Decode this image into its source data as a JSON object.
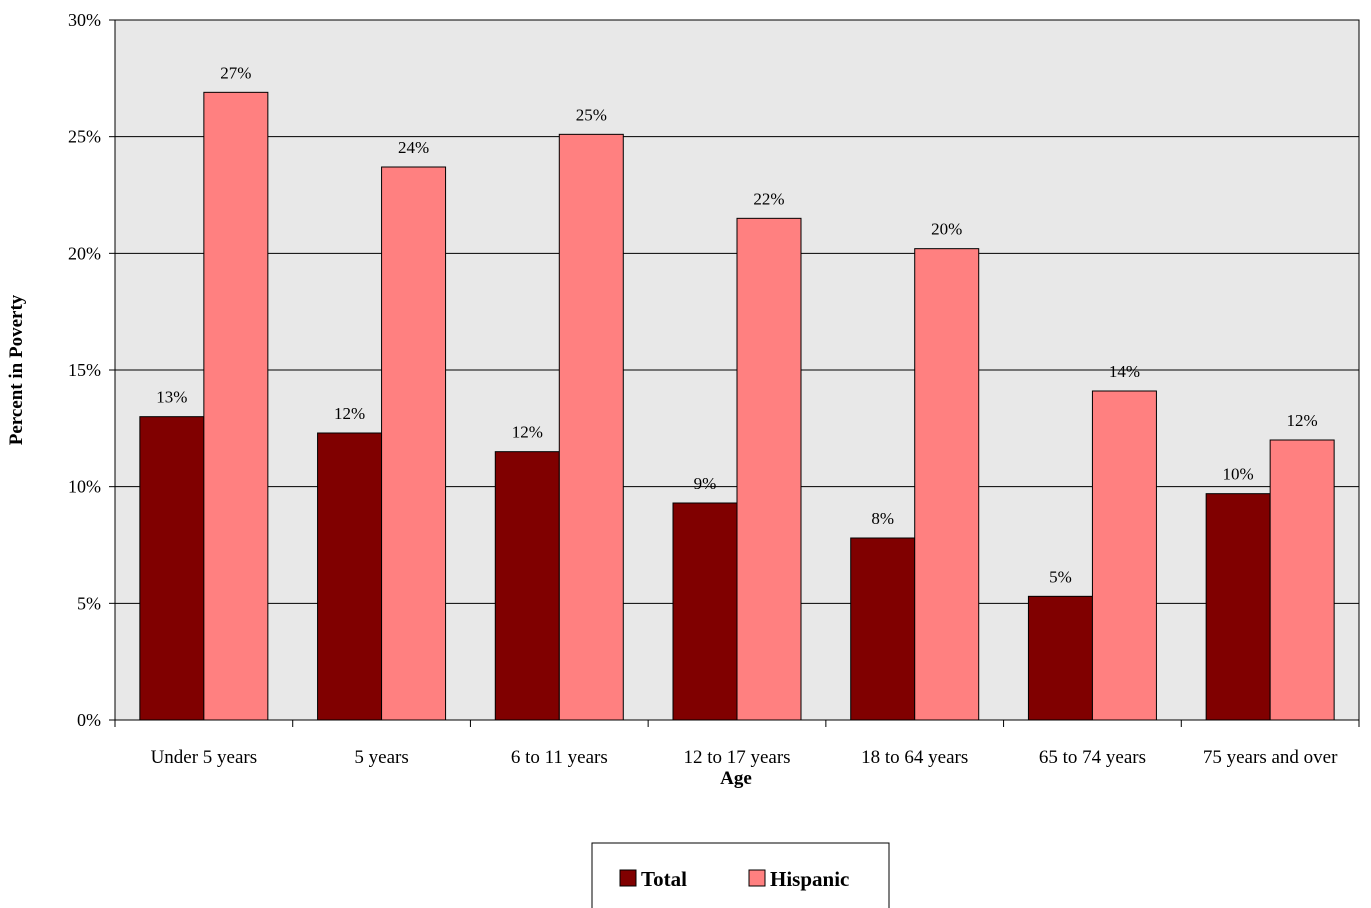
{
  "chart_data": {
    "type": "bar",
    "title": "",
    "xlabel": "Age",
    "ylabel": "Percent in Poverty",
    "categories": [
      "Under 5 years",
      "5 years",
      "6 to 11 years",
      "12 to 17 years",
      "18 to 64 years",
      "65 to 74 years",
      "75 years and over"
    ],
    "series": [
      {
        "name": "Total",
        "color": "#800000",
        "values": [
          13.0,
          12.3,
          11.5,
          9.3,
          7.8,
          5.3,
          9.7
        ],
        "labels": [
          "13%",
          "12%",
          "12%",
          "9%",
          "8%",
          "5%",
          "10%"
        ]
      },
      {
        "name": "Hispanic",
        "color": "#ff8080",
        "values": [
          26.9,
          23.7,
          25.1,
          21.5,
          20.2,
          14.1,
          12.0
        ],
        "labels": [
          "27%",
          "24%",
          "25%",
          "22%",
          "20%",
          "14%",
          "12%"
        ]
      }
    ],
    "ylim": [
      0,
      30
    ],
    "yticks": [
      0,
      5,
      10,
      15,
      20,
      25,
      30
    ],
    "ytick_labels": [
      "0%",
      "5%",
      "10%",
      "15%",
      "20%",
      "25%",
      "30%"
    ],
    "grid": true,
    "plot_background": "#e8e8e8",
    "legend_position": "bottom-center"
  }
}
